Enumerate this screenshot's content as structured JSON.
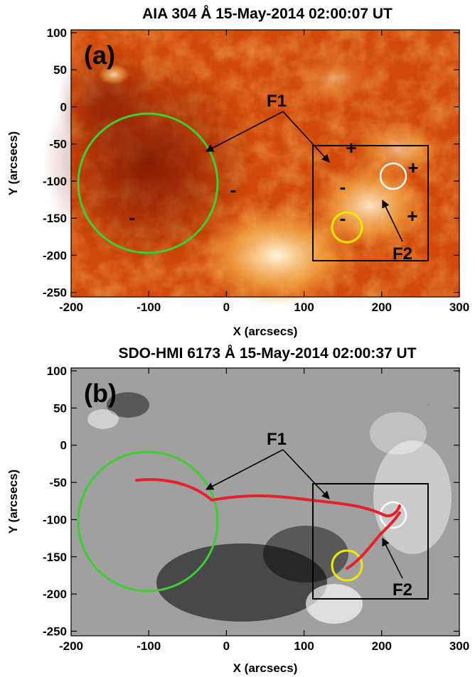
{
  "panels": [
    {
      "id": "a",
      "title": "AIA 304 Å 15-May-2014 02:00:07 UT",
      "panel_letter": "(a)",
      "x_axis_label": "X (arcsecs)",
      "y_axis_label": "Y (arcsecs)",
      "x_ticks": [
        "-200",
        "-100",
        "0",
        "100",
        "200",
        "300"
      ],
      "y_ticks": [
        "100",
        "50",
        "0",
        "-50",
        "-100",
        "-150",
        "-200",
        "-250"
      ],
      "feature_labels": {
        "f1": "F1",
        "f2": "F2"
      },
      "polarity_signs": {
        "neg1": "-",
        "neg2": "-",
        "neg3": "-",
        "neg4": "-",
        "pos1": "+",
        "pos2": "+",
        "pos3": "+"
      },
      "circle_colors": {
        "green": "#3ccf32",
        "yellow": "#f2e600",
        "white": "#ffffff"
      },
      "image_description_colors": [
        "#8a1600",
        "#c83c06",
        "#f59b33",
        "#fff2cf"
      ]
    },
    {
      "id": "b",
      "title": "SDO-HMI 6173 Å 15-May-2014 02:00:37 UT",
      "panel_letter": "(b)",
      "x_axis_label": "X (arcsecs)",
      "y_axis_label": "Y (arcsecs)",
      "x_ticks": [
        "-200",
        "-100",
        "0",
        "100",
        "200",
        "300"
      ],
      "y_ticks": [
        "100",
        "50",
        "0",
        "-50",
        "-100",
        "-150",
        "-200",
        "-250"
      ],
      "feature_labels": {
        "f1": "F1",
        "f2": "F2"
      },
      "circle_colors": {
        "green": "#3ccf32",
        "yellow": "#f2e600",
        "white": "#ffffff"
      },
      "filament_color": "#e8202a",
      "image_description_colors": [
        "#808080",
        "#000000",
        "#ffffff"
      ]
    }
  ]
}
